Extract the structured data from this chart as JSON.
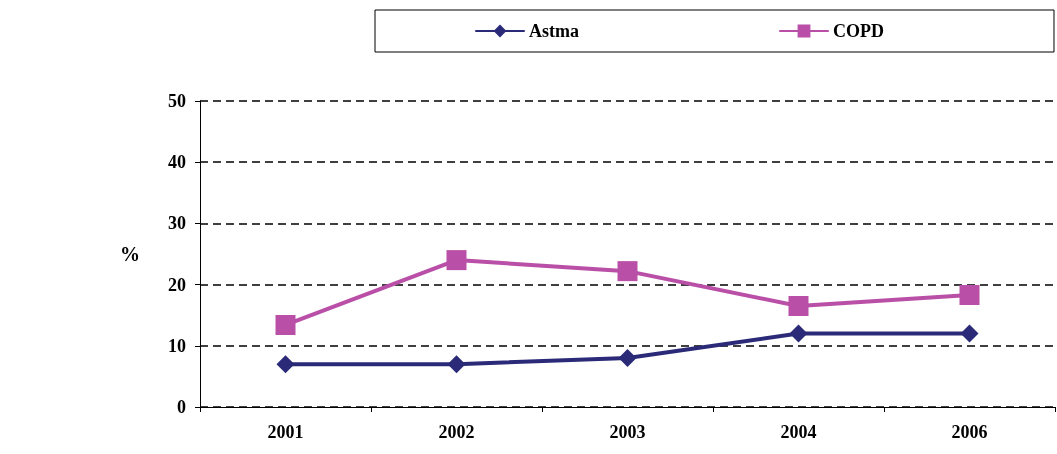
{
  "chart_data": {
    "type": "line",
    "ylabel": "%",
    "categories": [
      "2001",
      "2002",
      "2003",
      "2004",
      "2006"
    ],
    "series": [
      {
        "name": "Astma",
        "color": "#2b2a78",
        "marker": "diamond",
        "values": [
          7,
          7,
          8,
          12,
          12
        ]
      },
      {
        "name": "COPD",
        "color": "#b94fa7",
        "marker": "square",
        "values": [
          13.4,
          24,
          22.2,
          16.5,
          18.3
        ]
      }
    ],
    "ylim": [
      0,
      50
    ],
    "yticks": [
      0,
      10,
      20,
      30,
      40,
      50
    ],
    "grid": "y",
    "line_style": "solid",
    "legend": "top"
  }
}
